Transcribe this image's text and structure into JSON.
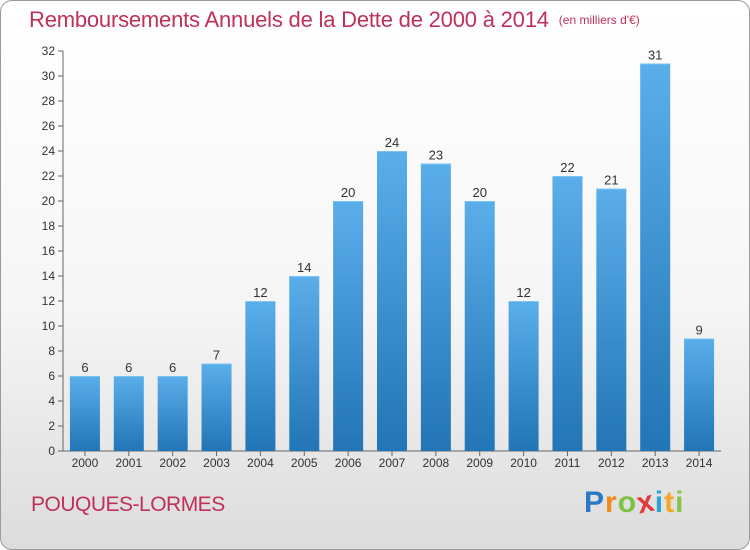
{
  "title": "Remboursements Annuels de la Dette de 2000 à 2014",
  "unit": "(en milliers d'€)",
  "place": "POUQUES-LORMES",
  "logo": {
    "letters": [
      "P",
      "r",
      "o",
      "x",
      "i",
      "t",
      "i"
    ],
    "colors": [
      "#2a78c8",
      "#f08a1c",
      "#7cc242",
      "#e03b3b",
      "#2aa3d8",
      "#f5a623",
      "#8bc34a"
    ]
  },
  "colors": {
    "bar_top": "#5aaeea",
    "bar_bottom": "#2275b6",
    "text": "#c0305a"
  },
  "chart_data": {
    "type": "bar",
    "categories": [
      "2000",
      "2001",
      "2002",
      "2003",
      "2004",
      "2005",
      "2006",
      "2007",
      "2008",
      "2009",
      "2010",
      "2011",
      "2012",
      "2013",
      "2014"
    ],
    "values": [
      6,
      6,
      6,
      7,
      12,
      14,
      20,
      24,
      23,
      20,
      12,
      22,
      21,
      31,
      9
    ],
    "title": "Remboursements Annuels de la Dette de 2000 à 2014",
    "xlabel": "",
    "ylabel": "",
    "ylim": [
      0,
      32
    ],
    "yticks": [
      0,
      2,
      4,
      6,
      8,
      10,
      12,
      14,
      16,
      18,
      20,
      22,
      24,
      26,
      28,
      30,
      32
    ],
    "grid": false
  }
}
